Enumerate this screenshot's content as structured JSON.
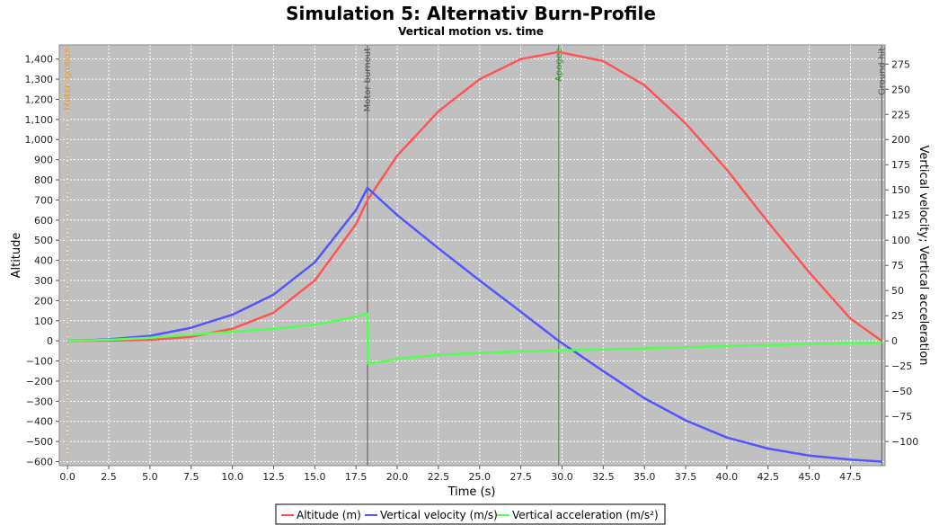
{
  "chart_data": {
    "type": "line",
    "title": "Simulation 5: Alternativ Burn-Profile",
    "subtitle": "Vertical motion vs. time",
    "xlabel": "Time (s)",
    "ylabel_left": "Altitude",
    "ylabel_right": "Vertical velocity; Vertical acceleration",
    "xlim": [
      -0.5,
      49.6
    ],
    "ylim_left": [
      -620,
      1470
    ],
    "ylim_right": [
      -124,
      294
    ],
    "x_ticks": [
      0,
      2.5,
      5,
      7.5,
      10,
      12.5,
      15,
      17.5,
      20,
      22.5,
      25,
      27.5,
      30,
      32.5,
      35,
      37.5,
      40,
      42.5,
      45,
      47.5
    ],
    "x_tick_labels": [
      "0.0",
      "2.5",
      "5.0",
      "7.5",
      "10.0",
      "12.5",
      "15.0",
      "17.5",
      "20.0",
      "22.5",
      "25.0",
      "27.5",
      "30.0",
      "32.5",
      "35.0",
      "37.5",
      "40.0",
      "42.5",
      "45.0",
      "47.5"
    ],
    "y_left_ticks": [
      -600,
      -500,
      -400,
      -300,
      -200,
      -100,
      0,
      100,
      200,
      300,
      400,
      500,
      600,
      700,
      800,
      900,
      1000,
      1100,
      1200,
      1300,
      1400
    ],
    "y_left_tick_labels": [
      "−600",
      "−500",
      "−400",
      "−300",
      "−200",
      "−100",
      "0",
      "100",
      "200",
      "300",
      "400",
      "500",
      "600",
      "700",
      "800",
      "900",
      "1,000",
      "1,100",
      "1,200",
      "1,300",
      "1,400"
    ],
    "y_right_ticks": [
      -100,
      -75,
      -50,
      -25,
      0,
      25,
      50,
      75,
      100,
      125,
      150,
      175,
      200,
      225,
      250,
      275
    ],
    "y_right_tick_labels": [
      "−100",
      "−75",
      "−50",
      "−25",
      "0",
      "25",
      "50",
      "75",
      "100",
      "125",
      "150",
      "175",
      "200",
      "225",
      "250",
      "275"
    ],
    "grid": true,
    "legend_position": "bottom-center",
    "markers": [
      {
        "label": "Motor ignition",
        "x": 0.0,
        "color": "#e8a040",
        "dashed": true
      },
      {
        "label": "Motor burnout",
        "x": 18.2,
        "color": "#555555",
        "dashed": false
      },
      {
        "label": "Apogee",
        "x": 29.8,
        "color": "#3a8a3a",
        "dashed": false
      },
      {
        "label": "Ground hit",
        "x": 49.4,
        "color": "#555555",
        "dashed": false
      }
    ],
    "series": [
      {
        "name": "Altitude (m)",
        "axis": "left",
        "color": "#ff5555",
        "x": [
          0,
          2.5,
          5,
          7.5,
          10,
          12.5,
          15,
          17.5,
          18.2,
          20,
          22.5,
          25,
          27.5,
          29.8,
          32.5,
          35,
          37.5,
          40,
          42.5,
          45,
          47.5,
          49.4
        ],
        "y": [
          0,
          1,
          5,
          20,
          60,
          140,
          300,
          580,
          700,
          920,
          1140,
          1300,
          1400,
          1435,
          1390,
          1270,
          1080,
          850,
          590,
          340,
          110,
          0
        ]
      },
      {
        "name": "Vertical velocity (m/s)",
        "axis": "right",
        "color": "#5555ff",
        "x": [
          0,
          2.5,
          5,
          7.5,
          10,
          12.5,
          15,
          17.5,
          18.2,
          20,
          22.5,
          25,
          27.5,
          29.8,
          32.5,
          35,
          37.5,
          40,
          42.5,
          45,
          47.5,
          49.4
        ],
        "y": [
          0,
          1.5,
          5,
          13,
          26,
          46,
          78,
          130,
          152,
          125,
          92,
          60,
          29,
          0,
          -30,
          -57,
          -79,
          -96,
          -107,
          -114,
          -118,
          -120
        ]
      },
      {
        "name": "Vertical acceleration (m/s²)",
        "axis": "right",
        "color": "#55ff55",
        "x": [
          0,
          2.5,
          5,
          7.5,
          10,
          12.5,
          15,
          17.5,
          18.2,
          18.25,
          20,
          22.5,
          25,
          27.5,
          30,
          32.5,
          35,
          37.5,
          40,
          42.5,
          45,
          47.5,
          49.4
        ],
        "y": [
          0,
          1,
          3,
          6,
          9,
          12,
          16,
          24,
          27,
          -23,
          -18,
          -14,
          -12,
          -10.5,
          -9.5,
          -8.5,
          -7.5,
          -6.5,
          -5.2,
          -4.2,
          -3.2,
          -2.2,
          -1.8
        ]
      }
    ]
  }
}
